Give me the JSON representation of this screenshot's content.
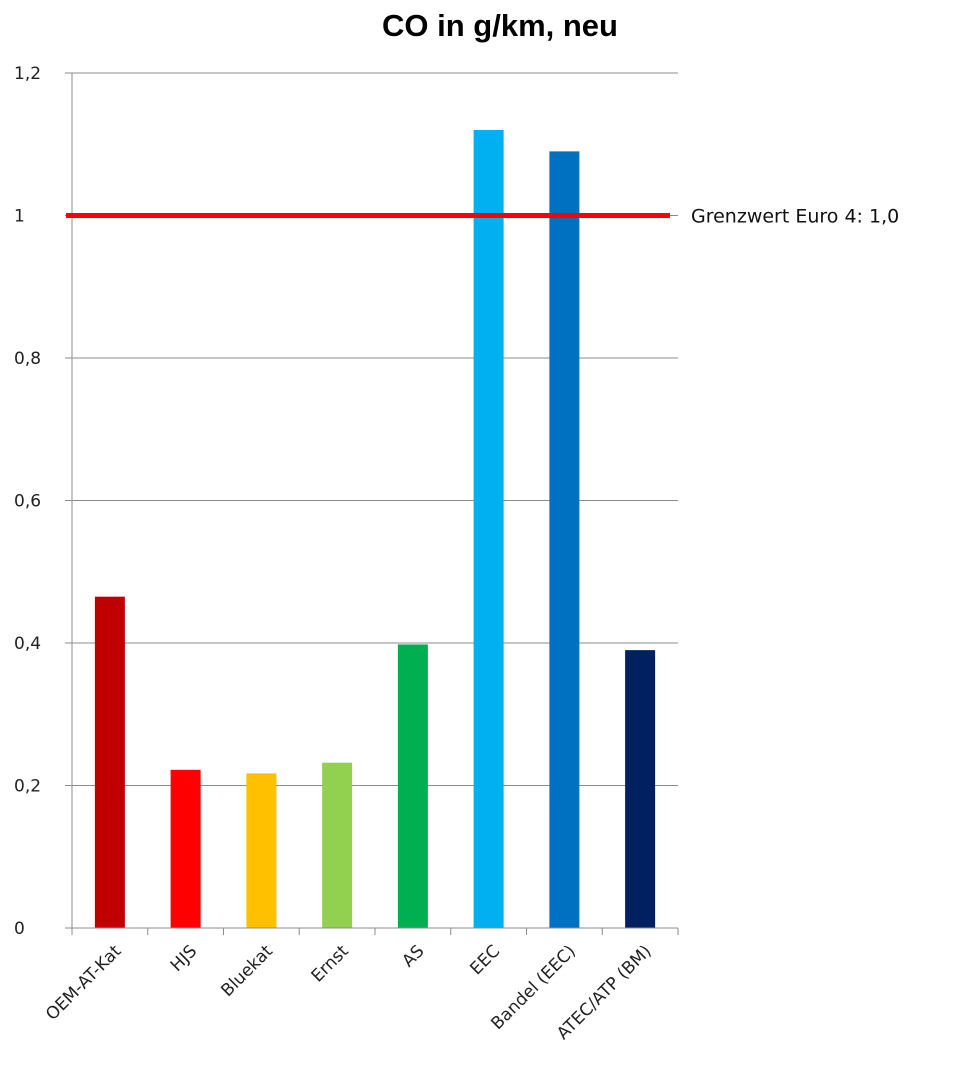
{
  "chart_data": {
    "type": "bar",
    "title": "CO in g/km, neu",
    "xlabel": "",
    "ylabel": "",
    "ylim": [
      0,
      1.2
    ],
    "yticks": [
      "0",
      "0,2",
      "0,4",
      "0,6",
      "0,8",
      "1",
      "1,2"
    ],
    "grid": true,
    "categories": [
      "OEM-AT-Kat",
      "HJS",
      "Bluekat",
      "Ernst",
      "AS",
      "EEC",
      "Bandel (EEC)",
      "ATEC/ATP (BM)"
    ],
    "values": [
      0.465,
      0.222,
      0.217,
      0.232,
      0.398,
      1.12,
      1.09,
      0.39
    ],
    "colors": [
      "#C00000",
      "#FF0000",
      "#FFC000",
      "#92D050",
      "#00B050",
      "#00B0F0",
      "#0070C0",
      "#002060"
    ],
    "reference_line": {
      "value": 1.0,
      "label": "Grenzwert Euro 4: 1,0",
      "color": "#FF0000"
    }
  }
}
